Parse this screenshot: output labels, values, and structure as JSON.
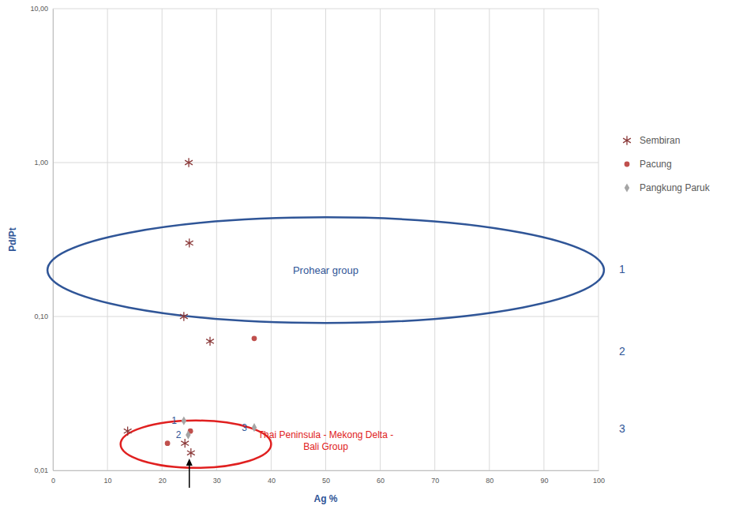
{
  "chart_data": {
    "type": "scatter",
    "x_label": "Ag %",
    "y_label": "Pd/Pt",
    "log": "y",
    "grid": true,
    "legend": "right",
    "xlim": [
      0,
      100
    ],
    "xticks": [
      0,
      10,
      20,
      30,
      40,
      50,
      60,
      70,
      80,
      90,
      100
    ],
    "ylim": [
      0.01,
      10
    ],
    "yticks": [
      {
        "value": 0.01,
        "label": "0,01"
      },
      {
        "value": 0.1,
        "label": "0,10"
      },
      {
        "value": 1,
        "label": "1,00"
      },
      {
        "value": 10,
        "label": "10,00"
      }
    ],
    "series": [
      {
        "name": "Sembiran",
        "color": "#8b3a3a",
        "marker": "asterisk",
        "x": [
          24.9,
          25,
          24,
          28.8,
          13.7,
          24.2,
          25.3
        ],
        "values": [
          1.0,
          0.3,
          0.1,
          0.069,
          0.018,
          0.015,
          0.013
        ]
      },
      {
        "name": "Pacung",
        "color": "#c0504d",
        "marker": "circle",
        "x": [
          36.9,
          21,
          25.2
        ],
        "values": [
          0.072,
          0.015,
          0.018
        ]
      },
      {
        "name": "Pangkung Paruk",
        "color": "#a5a5a5",
        "marker": "diamond",
        "x": [
          24,
          24.8,
          36.9
        ],
        "values": [
          0.021,
          0.017,
          0.019
        ],
        "labels": [
          "1",
          "2",
          "3"
        ]
      }
    ],
    "annotations": [
      {
        "text": "Prohear group"
      },
      {
        "text": [
          "Thai Peninsula - Mekong Delta -",
          "Bali Group"
        ]
      }
    ],
    "image_labels": [
      "1",
      "2",
      "3"
    ]
  }
}
